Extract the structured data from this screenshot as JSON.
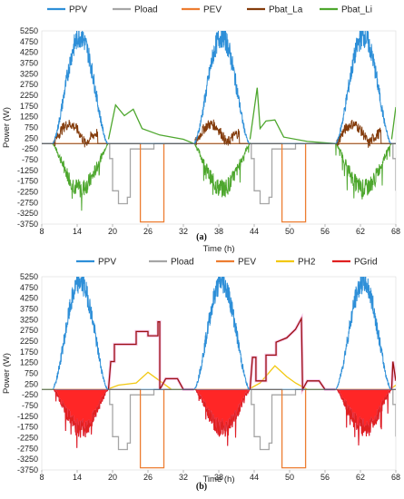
{
  "chart_data": [
    {
      "type": "line",
      "caption": "(a)",
      "xlabel": "Time (h)",
      "ylabel": "Power (W)",
      "xlim": [
        8,
        68
      ],
      "ylim": [
        -3750,
        5250
      ],
      "xticks": [
        8,
        14,
        20,
        26,
        32,
        38,
        44,
        50,
        56,
        62,
        68
      ],
      "yticks": [
        -3750,
        -3250,
        -2750,
        -2250,
        -1750,
        -1250,
        -750,
        -250,
        250,
        750,
        1250,
        1750,
        2250,
        2750,
        3250,
        3750,
        4250,
        4750,
        5250
      ],
      "legend_position": "top",
      "series": [
        {
          "name": "PPV",
          "color": "#2e8fd8",
          "kind": "pv",
          "days": [
            [
              9.8,
              14.0,
              19.2
            ],
            [
              33.8,
              38.0,
              43.2
            ],
            [
              57.8,
              62.0,
              67.2
            ]
          ],
          "peak": 5000
        },
        {
          "name": "Pload",
          "color": "#a6a6a6",
          "kind": "steps",
          "points": [
            [
              8,
              0
            ],
            [
              19.5,
              0
            ],
            [
              19.5,
              -700
            ],
            [
              20,
              -700
            ],
            [
              20,
              -2200
            ],
            [
              21,
              -2200
            ],
            [
              21,
              -2800
            ],
            [
              22.5,
              -2800
            ],
            [
              22.5,
              -2500
            ],
            [
              23,
              -2500
            ],
            [
              23,
              -250
            ],
            [
              27,
              -250
            ],
            [
              27,
              0
            ],
            [
              43.5,
              0
            ],
            [
              43.5,
              -700
            ],
            [
              44,
              -700
            ],
            [
              44,
              -2200
            ],
            [
              45,
              -2200
            ],
            [
              45,
              -2800
            ],
            [
              46.5,
              -2800
            ],
            [
              46.5,
              -2500
            ],
            [
              47,
              -2500
            ],
            [
              47,
              -250
            ],
            [
              51,
              -250
            ],
            [
              51,
              0
            ],
            [
              67.5,
              0
            ],
            [
              67.5,
              -700
            ],
            [
              68,
              -700
            ],
            [
              68,
              -2200
            ]
          ]
        },
        {
          "name": "PEV",
          "color": "#ed7d31",
          "kind": "steps",
          "points": [
            [
              8,
              0
            ],
            [
              24.7,
              0
            ],
            [
              24.7,
              -3650
            ],
            [
              28.7,
              -3650
            ],
            [
              28.7,
              0
            ],
            [
              48.7,
              0
            ],
            [
              48.7,
              -3650
            ],
            [
              52.7,
              -3650
            ],
            [
              52.7,
              0
            ],
            [
              68,
              0
            ]
          ]
        },
        {
          "name": "Pbat_La",
          "color": "#843c0c",
          "kind": "battery_la",
          "days": [
            [
              10,
              17.5
            ],
            [
              34,
              41.5
            ],
            [
              58,
              65.5
            ]
          ],
          "amp": 900
        },
        {
          "name": "Pbat_Li",
          "color": "#4ea72e",
          "kind": "battery_li",
          "days": [
            [
              9.8,
              19.3
            ],
            [
              33.8,
              43.3
            ],
            [
              57.8,
              67.3
            ]
          ],
          "amp": 2100,
          "points": [
            [
              19.3,
              200
            ],
            [
              20.5,
              1800
            ],
            [
              22,
              1300
            ],
            [
              23.5,
              1600
            ],
            [
              25,
              700
            ],
            [
              28,
              400
            ],
            [
              32,
              200
            ],
            [
              33.8,
              0
            ],
            [
              43.3,
              200
            ],
            [
              44.5,
              2600
            ],
            [
              45,
              700
            ],
            [
              46,
              1050
            ],
            [
              47.5,
              1100
            ],
            [
              49,
              300
            ],
            [
              53,
              100
            ],
            [
              57.8,
              0
            ],
            [
              67.3,
              200
            ],
            [
              68,
              1700
            ]
          ]
        }
      ]
    },
    {
      "type": "line",
      "caption": "(b)",
      "xlabel": "Time (h)",
      "ylabel": "Power (W)",
      "xlim": [
        8,
        68
      ],
      "ylim": [
        -3750,
        5250
      ],
      "xticks": [
        8,
        14,
        20,
        26,
        32,
        38,
        44,
        50,
        56,
        62,
        68
      ],
      "yticks": [
        -3750,
        -3250,
        -2750,
        -2250,
        -1750,
        -1250,
        -750,
        -250,
        250,
        750,
        1250,
        1750,
        2250,
        2750,
        3250,
        3750,
        4250,
        4750,
        5250
      ],
      "legend_position": "top",
      "series": [
        {
          "name": "PPV",
          "color": "#2e8fd8",
          "kind": "pv",
          "days": [
            [
              9.8,
              14.0,
              19.2
            ],
            [
              33.8,
              38.0,
              43.2
            ],
            [
              57.8,
              62.0,
              67.2
            ]
          ],
          "peak": 5000
        },
        {
          "name": "Pload",
          "color": "#a6a6a6",
          "kind": "steps",
          "points": [
            [
              8,
              0
            ],
            [
              19.5,
              0
            ],
            [
              19.5,
              -700
            ],
            [
              20,
              -700
            ],
            [
              20,
              -2200
            ],
            [
              21,
              -2200
            ],
            [
              21,
              -2800
            ],
            [
              22.5,
              -2800
            ],
            [
              22.5,
              -2500
            ],
            [
              23,
              -2500
            ],
            [
              23,
              -250
            ],
            [
              27,
              -250
            ],
            [
              27,
              0
            ],
            [
              43.5,
              0
            ],
            [
              43.5,
              -700
            ],
            [
              44,
              -700
            ],
            [
              44,
              -2200
            ],
            [
              45,
              -2200
            ],
            [
              45,
              -2800
            ],
            [
              46.5,
              -2800
            ],
            [
              46.5,
              -2500
            ],
            [
              47,
              -2500
            ],
            [
              47,
              -250
            ],
            [
              51,
              -250
            ],
            [
              51,
              0
            ],
            [
              67.5,
              0
            ],
            [
              67.5,
              -700
            ],
            [
              68,
              -700
            ],
            [
              68,
              -2200
            ]
          ]
        },
        {
          "name": "PEV",
          "color": "#ed7d31",
          "kind": "steps",
          "points": [
            [
              8,
              0
            ],
            [
              24.7,
              0
            ],
            [
              24.7,
              -3650
            ],
            [
              28.7,
              -3650
            ],
            [
              28.7,
              0
            ],
            [
              48.7,
              0
            ],
            [
              48.7,
              -3650
            ],
            [
              52.7,
              -3650
            ],
            [
              52.7,
              0
            ],
            [
              68,
              0
            ]
          ]
        },
        {
          "name": "PH2",
          "color": "#f2c811",
          "kind": "steps",
          "points": [
            [
              8,
              0
            ],
            [
              19,
              0
            ],
            [
              21,
              200
            ],
            [
              24,
              300
            ],
            [
              26,
              800
            ],
            [
              28,
              400
            ],
            [
              30,
              0
            ],
            [
              43,
              0
            ],
            [
              45,
              300
            ],
            [
              47.5,
              1100
            ],
            [
              49.5,
              600
            ],
            [
              51,
              300
            ],
            [
              53,
              0
            ],
            [
              67,
              0
            ],
            [
              68,
              200
            ]
          ]
        },
        {
          "name": "PGrid",
          "color": "#e02020",
          "kind": "grid",
          "days": [
            [
              10,
              19.3
            ],
            [
              34,
              43.3
            ],
            [
              58,
              67.3
            ]
          ],
          "amp": 1800,
          "points": [
            [
              19.3,
              0
            ],
            [
              19.7,
              1300
            ],
            [
              20.3,
              1300
            ],
            [
              20.3,
              2100
            ],
            [
              24,
              2100
            ],
            [
              24,
              2700
            ],
            [
              26,
              2700
            ],
            [
              26,
              2500
            ],
            [
              27.7,
              2500
            ],
            [
              27.7,
              3150
            ],
            [
              28,
              3150
            ],
            [
              28,
              0
            ],
            [
              29,
              500
            ],
            [
              31,
              500
            ],
            [
              32,
              0
            ],
            [
              33.8,
              0
            ],
            [
              43.3,
              0
            ],
            [
              43.7,
              1500
            ],
            [
              44.3,
              1500
            ],
            [
              44.3,
              400
            ],
            [
              46,
              400
            ],
            [
              46,
              1600
            ],
            [
              47.7,
              1600
            ],
            [
              47.7,
              2200
            ],
            [
              49.5,
              2400
            ],
            [
              51,
              2800
            ],
            [
              52,
              3300
            ],
            [
              52.2,
              0
            ],
            [
              53,
              400
            ],
            [
              55,
              400
            ],
            [
              56,
              0
            ],
            [
              57.8,
              0
            ],
            [
              67.3,
              0
            ],
            [
              67.5,
              1300
            ],
            [
              68,
              400
            ]
          ]
        }
      ]
    }
  ]
}
